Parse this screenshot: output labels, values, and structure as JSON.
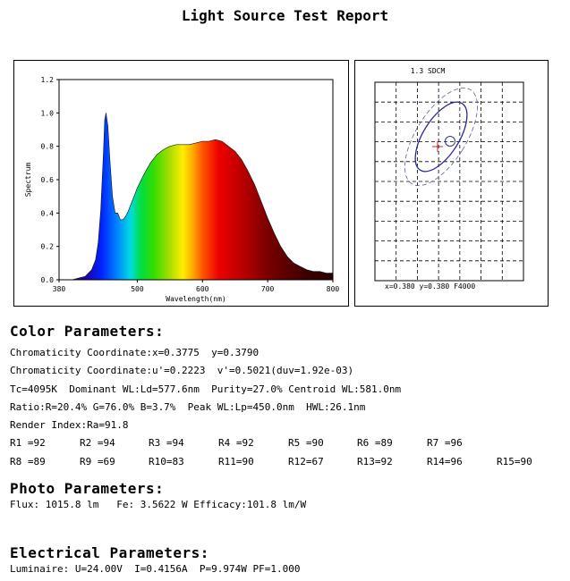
{
  "report": {
    "title": "Light Source Test Report"
  },
  "chart_data": [
    {
      "type": "area",
      "xlabel": "Wavelength(nm)",
      "ylabel": "Spectrum",
      "xlim": [
        380,
        800
      ],
      "ylim": [
        0,
        1.2
      ],
      "x_ticks": [
        380,
        500,
        600,
        700,
        800
      ],
      "x_tick_labels": [
        "380",
        "500",
        "600",
        "700",
        "800"
      ],
      "y_ticks": [
        0.0,
        0.2,
        0.4,
        0.6,
        0.8,
        1.0,
        1.2
      ],
      "y_tick_labels": [
        "0.0",
        "0.2",
        "0.4",
        "0.6",
        "0.8",
        "1.0",
        "1.2"
      ],
      "x": [
        380,
        400,
        410,
        420,
        430,
        436,
        440,
        444,
        448,
        450,
        452,
        455,
        458,
        462,
        466,
        470,
        474,
        478,
        482,
        486,
        490,
        494,
        500,
        510,
        520,
        530,
        540,
        550,
        560,
        570,
        580,
        590,
        600,
        610,
        620,
        630,
        640,
        650,
        660,
        670,
        680,
        690,
        700,
        710,
        720,
        730,
        740,
        750,
        760,
        770,
        780,
        790,
        800
      ],
      "values": [
        0.0,
        0.0,
        0.01,
        0.02,
        0.06,
        0.12,
        0.22,
        0.42,
        0.75,
        0.96,
        1.0,
        0.92,
        0.72,
        0.5,
        0.4,
        0.4,
        0.36,
        0.36,
        0.38,
        0.41,
        0.45,
        0.49,
        0.55,
        0.63,
        0.7,
        0.75,
        0.78,
        0.8,
        0.81,
        0.81,
        0.81,
        0.82,
        0.83,
        0.83,
        0.84,
        0.83,
        0.8,
        0.77,
        0.72,
        0.65,
        0.57,
        0.47,
        0.37,
        0.28,
        0.2,
        0.14,
        0.1,
        0.08,
        0.06,
        0.05,
        0.05,
        0.04,
        0.04
      ]
    },
    {
      "type": "scatter",
      "title": "1.3 SDCM",
      "readout": "x=0.380 y=0.380 F4000",
      "measured_point": {
        "x": 0.3775,
        "y": 0.379
      },
      "target_point": {
        "x": 0.38,
        "y": 0.38
      }
    }
  ],
  "color_section": {
    "heading": "Color Parameters:",
    "lines": [
      "Chromaticity Coordinate:x=0.3775  y=0.3790",
      "Chromaticity Coordinate:u'=0.2223  v'=0.5021(duv=1.92e-03)",
      "Tc=4095K  Dominant WL:Ld=577.6nm  Purity=27.0% Centroid WL:581.0nm",
      "Ratio:R=20.4% G=76.0% B=3.7%  Peak WL:Lp=450.0nm  HWL:26.1nm",
      "Render Index:Ra=91.8"
    ],
    "r_values_row1": [
      "R1 =92",
      "R2 =94",
      "R3 =94",
      "R4 =92",
      "R5 =90",
      "R6 =89",
      "R7 =96"
    ],
    "r_values_row2": [
      "R8 =89",
      "R9 =69",
      "R10=83",
      "R11=90",
      "R12=67",
      "R13=92",
      "R14=96",
      "R15=90"
    ]
  },
  "photo_section": {
    "heading": "Photo Parameters:",
    "line": "Flux: 1015.8 lm   Fe: 3.5622 W Efficacy:101.8 lm/W"
  },
  "electrical_section": {
    "heading": "Electrical Parameters:",
    "line": "Luminaire: U=24.00V  I=0.4156A  P=9.974W PF=1.000"
  }
}
